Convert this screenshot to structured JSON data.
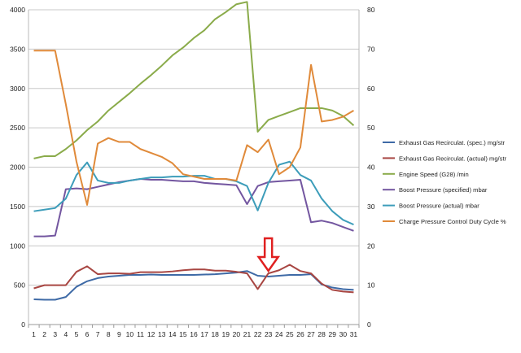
{
  "chart_data": {
    "type": "line",
    "x": [
      1,
      2,
      3,
      4,
      5,
      6,
      7,
      8,
      9,
      10,
      11,
      12,
      13,
      14,
      15,
      16,
      17,
      18,
      19,
      20,
      21,
      22,
      23,
      24,
      25,
      26,
      27,
      28,
      29,
      30,
      31
    ],
    "y_left_ticks": [
      0,
      500,
      1000,
      1500,
      2000,
      2500,
      3000,
      3500,
      4000
    ],
    "y_right_ticks": [
      0,
      10,
      20,
      30,
      40,
      50,
      60,
      70,
      80
    ],
    "ylim_left": [
      0,
      4000
    ],
    "ylim_right": [
      0,
      80
    ],
    "grid": "horizontal",
    "legend_position": "right",
    "annotation": {
      "type": "arrow-down",
      "x": 23,
      "color": "#e02020"
    },
    "series": [
      {
        "name": "Exhaust Gas Recirculat. (spec.)  mg/str",
        "axis": "left",
        "color": "#3e6aa6",
        "values": [
          320,
          315,
          315,
          350,
          480,
          550,
          590,
          610,
          620,
          630,
          630,
          635,
          630,
          630,
          630,
          630,
          635,
          640,
          650,
          660,
          680,
          620,
          610,
          620,
          630,
          630,
          640,
          510,
          470,
          450,
          440
        ]
      },
      {
        "name": "Exhaust Gas Recirculat. (actual)  mg/str",
        "axis": "left",
        "color": "#a84642",
        "values": [
          460,
          500,
          500,
          500,
          670,
          740,
          640,
          650,
          650,
          645,
          665,
          665,
          665,
          675,
          690,
          700,
          700,
          685,
          685,
          670,
          650,
          450,
          650,
          690,
          760,
          680,
          650,
          520,
          440,
          420,
          410
        ]
      },
      {
        "name": "Engine Speed (G28)  /min",
        "axis": "right",
        "color": "#8aab4a",
        "values": [
          42.2,
          42.8,
          42.8,
          44.6,
          46.8,
          49.4,
          51.6,
          54.4,
          56.6,
          58.8,
          61.2,
          63.4,
          65.8,
          68.4,
          70.4,
          72.8,
          74.8,
          77.6,
          79.4,
          81.4,
          82.0,
          49.0,
          52.0,
          53.0,
          54.0,
          55.0,
          55.0,
          55.0,
          54.4,
          53.0,
          50.6
        ]
      },
      {
        "name": "Boost Pressure (specified)  mbar",
        "axis": "left",
        "color": "#7356a0",
        "values": [
          1120,
          1120,
          1130,
          1720,
          1730,
          1720,
          1750,
          1780,
          1810,
          1830,
          1850,
          1840,
          1840,
          1830,
          1820,
          1820,
          1800,
          1790,
          1780,
          1770,
          1530,
          1760,
          1810,
          1820,
          1830,
          1840,
          1300,
          1320,
          1290,
          1240,
          1190
        ]
      },
      {
        "name": "Boost Pressure (actual)  mbar",
        "axis": "left",
        "color": "#3d9dba",
        "values": [
          1440,
          1460,
          1480,
          1600,
          1900,
          2060,
          1830,
          1800,
          1800,
          1830,
          1850,
          1870,
          1870,
          1880,
          1880,
          1890,
          1890,
          1850,
          1850,
          1820,
          1760,
          1450,
          1800,
          2030,
          2070,
          1900,
          1830,
          1600,
          1440,
          1330,
          1270
        ]
      },
      {
        "name": "Charge Pressure Control Duty Cycle  %",
        "axis": "right",
        "color": "#e08a3a",
        "values": [
          69.6,
          69.6,
          69.6,
          56.0,
          41.4,
          30.4,
          46.0,
          47.4,
          46.4,
          46.4,
          44.6,
          43.6,
          42.6,
          41.0,
          38.2,
          37.6,
          37.0,
          37.0,
          37.0,
          36.6,
          45.6,
          43.8,
          47.0,
          38.2,
          40.0,
          45.0,
          66.0,
          51.6,
          52.0,
          52.8,
          54.4
        ]
      }
    ]
  }
}
